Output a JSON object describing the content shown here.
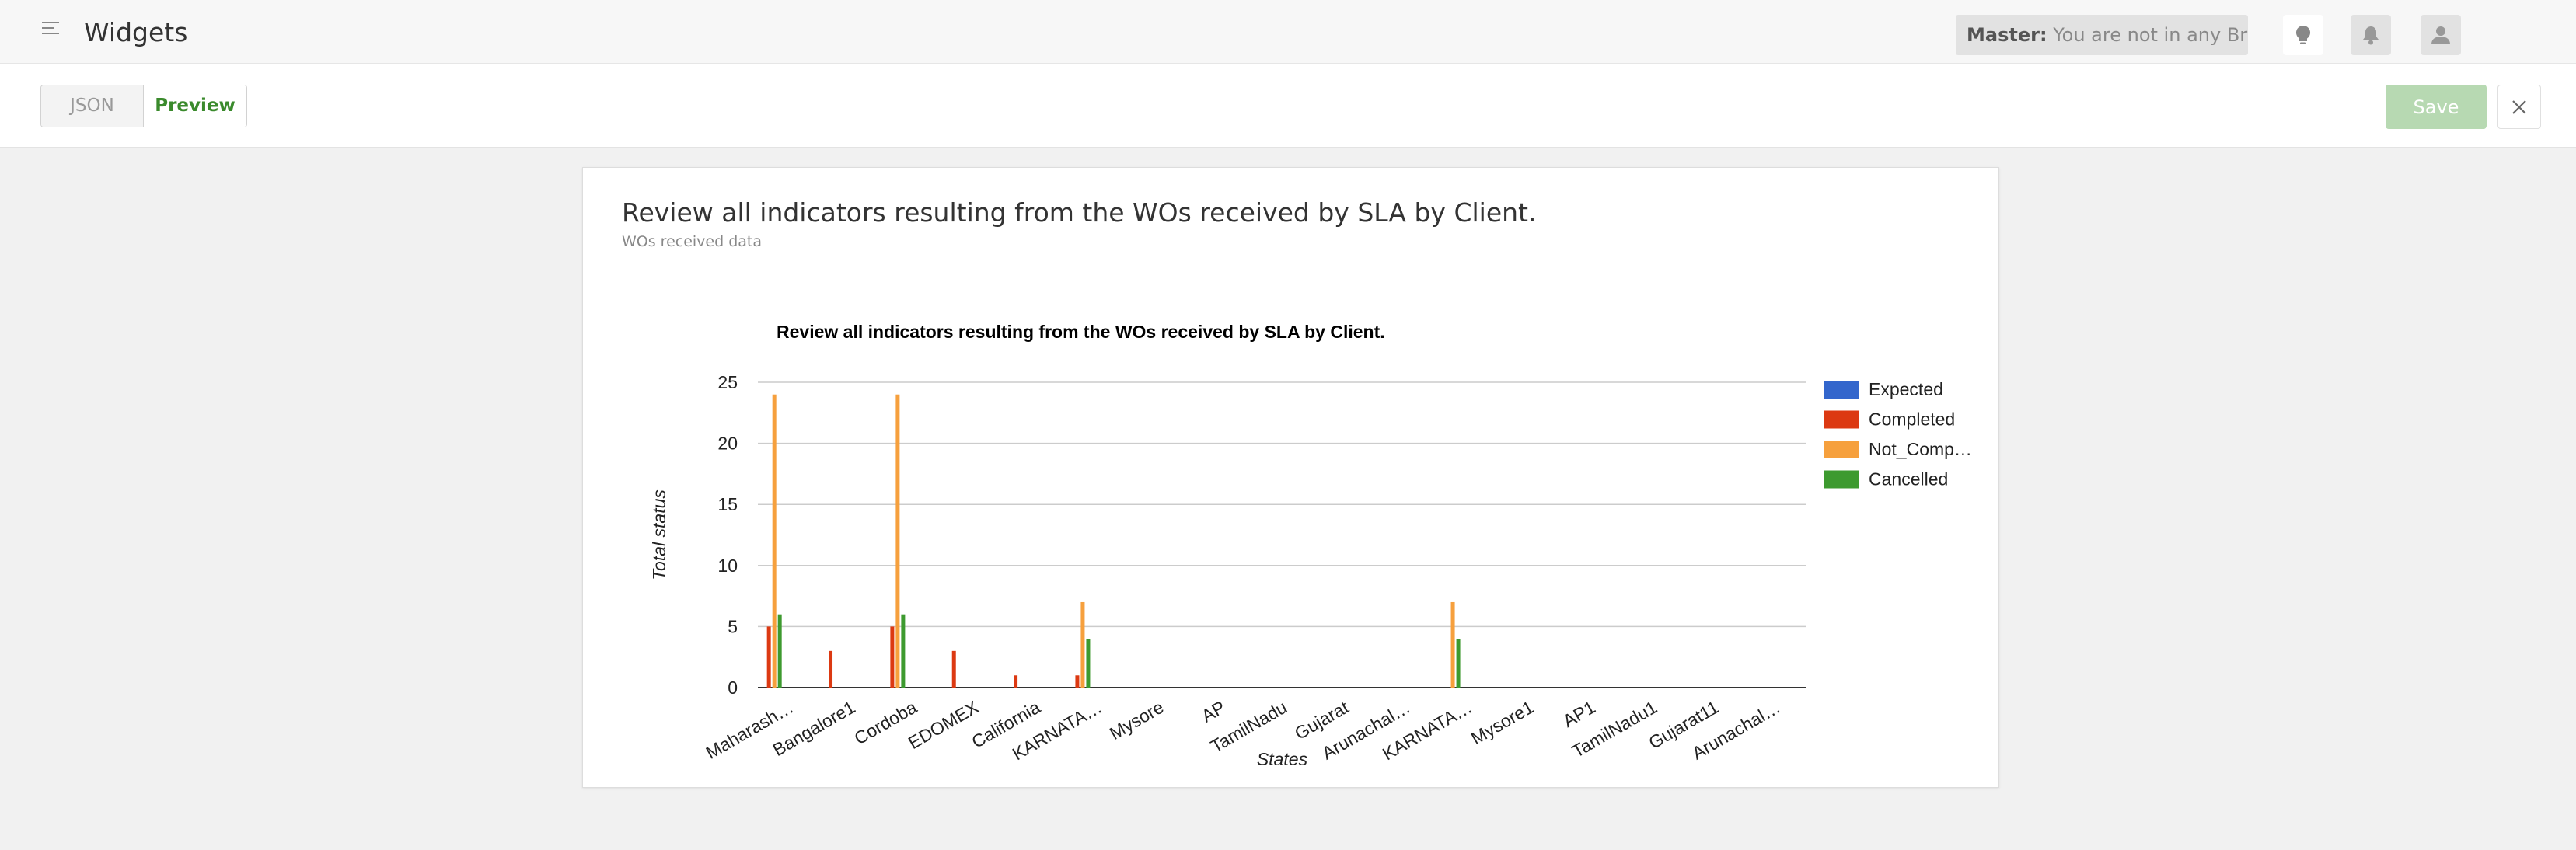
{
  "header": {
    "title": "Widgets",
    "branch_label": "Master:",
    "branch_value": "You are not in any Branch"
  },
  "toolbar": {
    "json_tab": "JSON",
    "preview_tab": "Preview",
    "save_label": "Save"
  },
  "card": {
    "title": "Review all indicators resulting from the WOs received by SLA by Client.",
    "subtitle": "WOs received data"
  },
  "colors": {
    "expected": "#3366cc",
    "completed": "#dc3912",
    "not_completed": "#f6a03d",
    "cancelled": "#3d9a2f",
    "accent": "#3a8a2c"
  },
  "chart_data": {
    "type": "bar",
    "title": "Review all indicators resulting from the WOs received by SLA by Client.",
    "xlabel": "States",
    "ylabel": "Total status",
    "ylim": [
      0,
      25
    ],
    "yticks": [
      "0",
      "5",
      "10",
      "15",
      "20",
      "25"
    ],
    "grid": true,
    "legend_position": "right",
    "categories": [
      "Maharash…",
      "Bangalore1",
      "Cordoba",
      "EDOMEX",
      "California",
      "KARNATA…",
      "Mysore",
      "AP",
      "TamilNadu",
      "Gujarat",
      "Arunachal…",
      "KARNATA…",
      "Mysore1",
      "AP1",
      "TamilNadu1",
      "Gujarat11",
      "Arunachal…"
    ],
    "series": [
      {
        "name": "Expected",
        "color": "#3366cc",
        "values": [
          0,
          0,
          0,
          0,
          0,
          0,
          0,
          0,
          0,
          0,
          0,
          0,
          0,
          0,
          0,
          0,
          0
        ]
      },
      {
        "name": "Completed",
        "color": "#dc3912",
        "values": [
          5,
          3,
          5,
          3,
          1,
          1,
          0,
          0,
          0,
          0,
          0,
          0,
          0,
          0,
          0,
          0,
          0
        ]
      },
      {
        "name": "Not_Comp…",
        "color": "#f6a03d",
        "values": [
          24,
          0,
          24,
          0,
          0,
          7,
          0,
          0,
          0,
          0,
          0,
          7,
          0,
          0,
          0,
          0,
          0
        ]
      },
      {
        "name": "Cancelled",
        "color": "#3d9a2f",
        "values": [
          6,
          0,
          6,
          0,
          0,
          4,
          0,
          0,
          0,
          0,
          0,
          4,
          0,
          0,
          0,
          0,
          0
        ]
      }
    ]
  }
}
